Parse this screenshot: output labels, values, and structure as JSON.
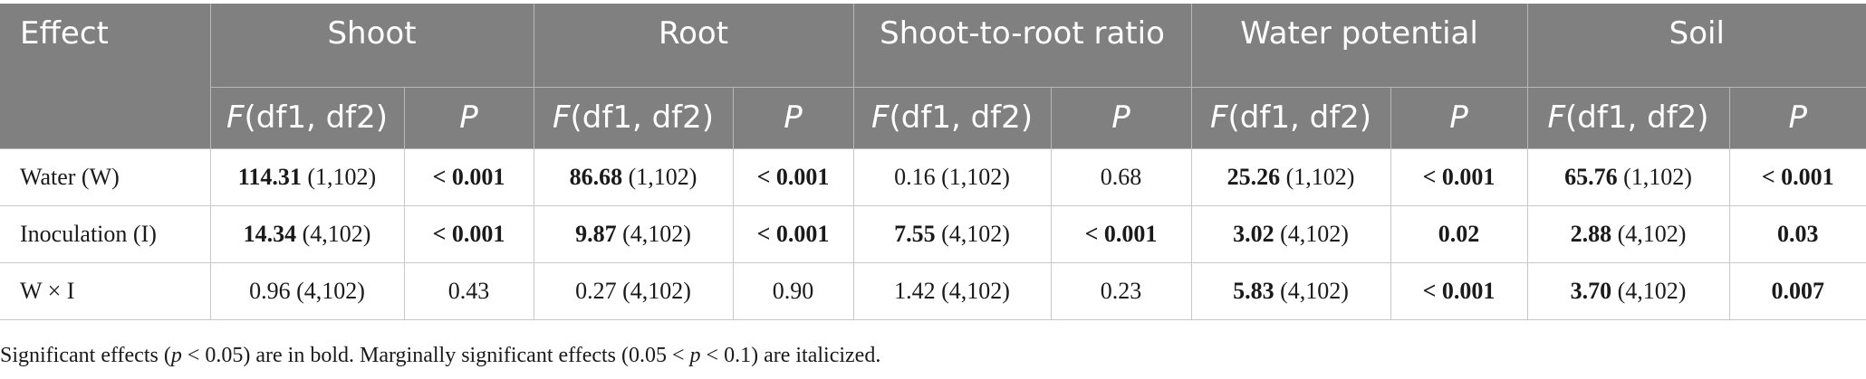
{
  "header": {
    "effect": "Effect",
    "groups": [
      "Shoot",
      "Root",
      "Shoot-to-root ratio",
      "Water potential",
      "Soil"
    ],
    "f_prefix": "F",
    "f_suffix": "(df1, df2)",
    "p_label": "P"
  },
  "rows": [
    {
      "effect": "Water (W)",
      "cells": [
        {
          "f": "114.31",
          "df": " (1,102)",
          "f_bold": true,
          "p": "< 0.001",
          "p_bold": true
        },
        {
          "f": "86.68",
          "df": " (1,102)",
          "f_bold": true,
          "p": "< 0.001",
          "p_bold": true
        },
        {
          "f": "0.16",
          "df": " (1,102)",
          "f_bold": false,
          "p": "0.68",
          "p_bold": false
        },
        {
          "f": "25.26",
          "df": " (1,102)",
          "f_bold": true,
          "p": "< 0.001",
          "p_bold": true
        },
        {
          "f": "65.76",
          "df": " (1,102)",
          "f_bold": true,
          "p": "< 0.001",
          "p_bold": true
        }
      ]
    },
    {
      "effect": "Inoculation (I)",
      "cells": [
        {
          "f": "14.34",
          "df": " (4,102)",
          "f_bold": true,
          "p": "< 0.001",
          "p_bold": true
        },
        {
          "f": "9.87",
          "df": " (4,102)",
          "f_bold": true,
          "p": "< 0.001",
          "p_bold": true
        },
        {
          "f": "7.55",
          "df": " (4,102)",
          "f_bold": true,
          "p": "< 0.001",
          "p_bold": true
        },
        {
          "f": "3.02",
          "df": " (4,102)",
          "f_bold": true,
          "p": "0.02",
          "p_bold": true
        },
        {
          "f": "2.88",
          "df": " (4,102)",
          "f_bold": true,
          "p": "0.03",
          "p_bold": true
        }
      ]
    },
    {
      "effect": "W × I",
      "cells": [
        {
          "f": "0.96",
          "df": " (4,102)",
          "f_bold": false,
          "p": "0.43",
          "p_bold": false
        },
        {
          "f": "0.27",
          "df": " (4,102)",
          "f_bold": false,
          "p": "0.90",
          "p_bold": false
        },
        {
          "f": "1.42",
          "df": " (4,102)",
          "f_bold": false,
          "p": "0.23",
          "p_bold": false
        },
        {
          "f": "5.83",
          "df": " (4,102)",
          "f_bold": true,
          "p": "< 0.001",
          "p_bold": true
        },
        {
          "f": "3.70",
          "df": " (4,102)",
          "f_bold": true,
          "p": "0.007",
          "p_bold": true
        }
      ]
    }
  ],
  "footnote": {
    "part1": "Significant effects (",
    "var1": "p",
    "part2": " < 0.05) are in bold. Marginally significant effects (0.05 < ",
    "var2": "p",
    "part3": " < 0.1) are italicized."
  }
}
